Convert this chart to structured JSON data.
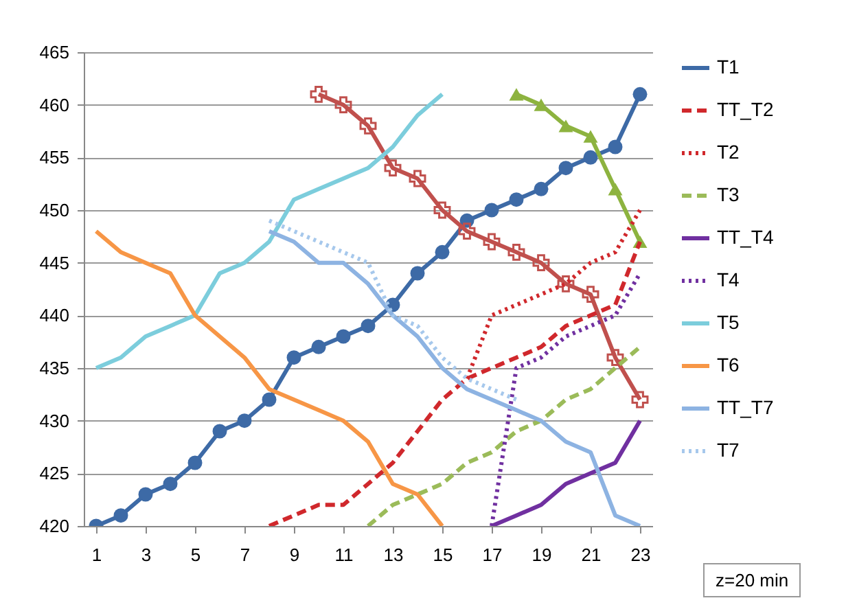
{
  "chart_data": {
    "type": "line",
    "xlim": [
      0.5,
      23.5
    ],
    "xticks": [
      1,
      3,
      5,
      7,
      9,
      11,
      13,
      15,
      17,
      19,
      21,
      23
    ],
    "ylim": [
      420,
      465
    ],
    "yticks": [
      420,
      425,
      430,
      435,
      440,
      445,
      450,
      455,
      460,
      465
    ],
    "grid": "y",
    "legend": "right",
    "annotations": [
      "z=20 min"
    ],
    "series": [
      {
        "name": "T1",
        "color": "#3d6aa6",
        "marker": "circle",
        "line_style": "solid",
        "x": [
          1,
          2,
          3,
          4,
          5,
          6,
          7,
          8,
          9,
          10,
          11,
          12,
          13,
          14,
          15,
          16,
          17,
          18,
          19,
          20,
          21,
          22,
          23
        ],
        "values": [
          420,
          421,
          423,
          424,
          426,
          429,
          430,
          432,
          436,
          437,
          438,
          439,
          441,
          444,
          446,
          449,
          450,
          451,
          452,
          454,
          455,
          456,
          461
        ]
      },
      {
        "color": "#c0504d",
        "marker": "cross",
        "line_style": "solid",
        "x": [
          10,
          11,
          12,
          13,
          14,
          15,
          16,
          17,
          18,
          19,
          20,
          21,
          22,
          23
        ],
        "values": [
          461,
          460,
          458,
          454,
          453,
          450,
          448,
          447,
          446,
          445,
          443,
          442,
          436,
          432
        ]
      },
      {
        "color": "#8db33f",
        "marker": "triangle",
        "line_style": "solid",
        "x": [
          18,
          19,
          20,
          21,
          22,
          23
        ],
        "values": [
          461,
          460,
          458,
          457,
          452,
          447
        ]
      },
      {
        "name": "TT_T2",
        "color": "#d0282c",
        "line_style": "dashed",
        "x": [
          8,
          9,
          10,
          11,
          12,
          13,
          14,
          15,
          16,
          17,
          18,
          19,
          20,
          21,
          22,
          23
        ],
        "values": [
          420,
          421,
          422,
          422,
          424,
          426,
          429,
          432,
          434,
          435,
          436,
          437,
          439,
          440,
          441,
          447
        ]
      },
      {
        "name": "T2",
        "color": "#d0282c",
        "line_style": "dotted",
        "x": [
          16,
          17,
          18,
          19,
          20,
          21,
          22,
          23
        ],
        "values": [
          434,
          440,
          441,
          442,
          443,
          445,
          446,
          450
        ]
      },
      {
        "name": "T3",
        "color": "#9bbb59",
        "line_style": "dashed",
        "x": [
          12,
          13,
          14,
          15,
          16,
          17,
          18,
          19,
          20,
          21,
          22,
          23
        ],
        "values": [
          420,
          422,
          423,
          424,
          426,
          427,
          429,
          430,
          432,
          433,
          435,
          437
        ]
      },
      {
        "name": "TT_T4",
        "color": "#7030a0",
        "line_style": "solid",
        "x": [
          17,
          18,
          19,
          20,
          21,
          22,
          23
        ],
        "values": [
          420,
          421,
          422,
          424,
          425,
          426,
          430
        ]
      },
      {
        "name": "T4",
        "color": "#7030a0",
        "line_style": "dotted",
        "x": [
          17,
          18,
          19,
          20,
          21,
          22,
          23
        ],
        "values": [
          420,
          435,
          436,
          438,
          439,
          440,
          444
        ]
      },
      {
        "name": "T5",
        "color": "#7ccddc",
        "line_style": "solid",
        "x": [
          1,
          2,
          3,
          4,
          5,
          6,
          7,
          8,
          9,
          10,
          11,
          12,
          13,
          14,
          15
        ],
        "values": [
          435,
          436,
          438,
          439,
          440,
          444,
          445,
          447,
          451,
          452,
          453,
          454,
          456,
          459,
          461
        ]
      },
      {
        "name": "T6",
        "color": "#f79646",
        "line_style": "solid",
        "x": [
          1,
          2,
          3,
          4,
          5,
          6,
          7,
          8,
          9,
          10,
          11,
          12,
          13,
          14,
          15
        ],
        "values": [
          448,
          446,
          445,
          444,
          440,
          438,
          436,
          433,
          432,
          431,
          430,
          428,
          424,
          423,
          420
        ]
      },
      {
        "name": "TT_T7",
        "color": "#8db3e2",
        "line_style": "solid",
        "x": [
          8,
          9,
          10,
          11,
          12,
          13,
          14,
          15,
          16,
          17,
          18,
          19,
          20,
          21,
          22,
          23
        ],
        "values": [
          448,
          447,
          445,
          445,
          443,
          440,
          438,
          435,
          433,
          432,
          431,
          430,
          428,
          427,
          421,
          420
        ]
      },
      {
        "name": "T7",
        "color": "#a6c8ec",
        "line_style": "dotted",
        "x": [
          8,
          9,
          10,
          11,
          12,
          13,
          14,
          15,
          16,
          17,
          18
        ],
        "values": [
          449,
          448,
          447,
          446,
          445,
          440,
          439,
          436,
          434,
          433,
          432
        ]
      }
    ]
  }
}
